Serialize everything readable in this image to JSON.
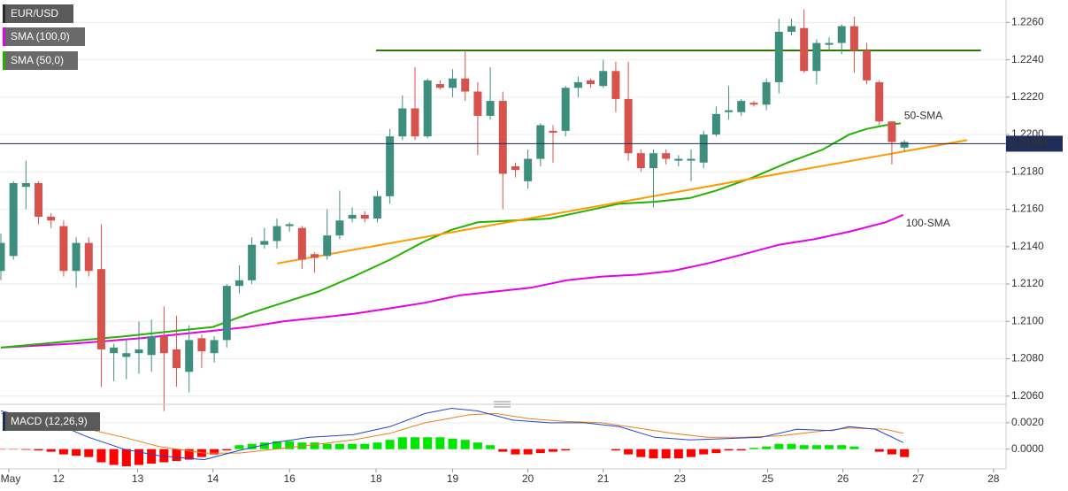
{
  "chart_data": [
    {
      "type": "candlestick",
      "title": "EUR/USD",
      "x": [
        0,
        1,
        2,
        3,
        4,
        5,
        6,
        7,
        8,
        9,
        10,
        11,
        12,
        13,
        14,
        15,
        16,
        17,
        18,
        19,
        20,
        21,
        22,
        23,
        24,
        25,
        26,
        27,
        28,
        29,
        30,
        31,
        32,
        33,
        34,
        35,
        36,
        37,
        38,
        39,
        40,
        41,
        42,
        43,
        44,
        45,
        46,
        47,
        48,
        49,
        50,
        51,
        52,
        53,
        54,
        55,
        56,
        57,
        58,
        59,
        60,
        61,
        62,
        63,
        64,
        65,
        66,
        67,
        68,
        69,
        70,
        71,
        72
      ],
      "open": [
        1.2127,
        1.2135,
        1.2172,
        1.2174,
        1.2156,
        1.2151,
        1.2127,
        1.2142,
        1.2128,
        1.2083,
        1.2081,
        1.2083,
        1.2082,
        1.2092,
        1.2085,
        1.2073,
        1.2091,
        1.2083,
        1.209,
        1.2119,
        1.2122,
        1.2141,
        1.2143,
        1.2151,
        1.215,
        1.2136,
        1.2135,
        1.2146,
        1.2155,
        1.2157,
        1.2155,
        1.2167,
        1.2199,
        1.2214,
        1.2199,
        1.2227,
        1.2225,
        1.223,
        1.2223,
        1.221,
        1.2218,
        1.2183,
        1.2175,
        1.2187,
        1.2202,
        1.2202,
        1.2225,
        1.2229,
        1.2226,
        1.2234,
        1.2219,
        1.219,
        1.2182,
        1.219,
        1.2186,
        1.2186,
        1.2185,
        1.22,
        1.2212,
        1.2212,
        1.2217,
        1.2216,
        1.2228,
        1.2255,
        1.2257,
        1.2234,
        1.2248,
        1.2249,
        1.2258,
        1.2245,
        1.2228,
        1.2207,
        1.2193
      ],
      "high": [
        1.2147,
        1.2175,
        1.2186,
        1.2175,
        1.2158,
        1.2154,
        1.2145,
        1.2145,
        1.2152,
        1.2088,
        1.209,
        1.21,
        1.2101,
        1.2108,
        1.2103,
        1.2098,
        1.2093,
        1.2092,
        1.212,
        1.213,
        1.2145,
        1.215,
        1.2155,
        1.2153,
        1.2151,
        1.2137,
        1.216,
        1.217,
        1.2161,
        1.2159,
        1.217,
        1.2203,
        1.2221,
        1.2236,
        1.223,
        1.2229,
        1.2235,
        1.2245,
        1.2228,
        1.2236,
        1.2223,
        1.2185,
        1.2192,
        1.2206,
        1.2205,
        1.2226,
        1.2231,
        1.223,
        1.224,
        1.2239,
        1.2239,
        1.2192,
        1.2192,
        1.2192,
        1.2189,
        1.2192,
        1.2202,
        1.2215,
        1.2226,
        1.2219,
        1.2218,
        1.223,
        1.2262,
        1.2262,
        1.2267,
        1.2251,
        1.2252,
        1.2259,
        1.2263,
        1.2249,
        1.2229,
        1.2207,
        1.2197
      ],
      "low": [
        1.2122,
        1.2133,
        1.216,
        1.2152,
        1.215,
        1.2124,
        1.2118,
        1.2124,
        1.2065,
        1.2068,
        1.2069,
        1.2072,
        1.2073,
        1.2052,
        1.2065,
        1.2062,
        1.2075,
        1.2078,
        1.2086,
        1.2115,
        1.212,
        1.2139,
        1.2139,
        1.2148,
        1.2128,
        1.2126,
        1.2133,
        1.2144,
        1.2153,
        1.2153,
        1.2153,
        1.2163,
        1.2197,
        1.2197,
        1.2198,
        1.2224,
        1.222,
        1.2218,
        1.2189,
        1.2208,
        1.216,
        1.2177,
        1.2171,
        1.2183,
        1.2185,
        1.2199,
        1.222,
        1.2225,
        1.2225,
        1.2212,
        1.2186,
        1.218,
        1.2161,
        1.2184,
        1.2183,
        1.2175,
        1.2182,
        1.2199,
        1.2208,
        1.221,
        1.2215,
        1.2213,
        1.2222,
        1.2253,
        1.2233,
        1.2227,
        1.2245,
        1.2243,
        1.2233,
        1.2227,
        1.2205,
        1.2184,
        1.2191
      ],
      "close": [
        1.2142,
        1.2174,
        1.2174,
        1.2156,
        1.2154,
        1.2127,
        1.2142,
        1.2127,
        1.2085,
        1.2086,
        1.2083,
        1.2085,
        1.2092,
        1.2083,
        1.2075,
        1.209,
        1.2084,
        1.209,
        1.2119,
        1.2122,
        1.2141,
        1.2143,
        1.2151,
        1.2152,
        1.2133,
        1.2134,
        1.2146,
        1.2154,
        1.2157,
        1.2155,
        1.2167,
        1.2199,
        1.2214,
        1.2199,
        1.2229,
        1.2225,
        1.223,
        1.2223,
        1.221,
        1.2218,
        1.2179,
        1.2181,
        1.2187,
        1.2205,
        1.2201,
        1.2225,
        1.2228,
        1.2227,
        1.2234,
        1.2219,
        1.219,
        1.2182,
        1.219,
        1.2187,
        1.2187,
        1.2187,
        1.22,
        1.2211,
        1.2213,
        1.2218,
        1.2216,
        1.2228,
        1.2255,
        1.2258,
        1.2234,
        1.2249,
        1.2249,
        1.2258,
        1.2245,
        1.2229,
        1.2207,
        1.2196,
        1.2196
      ],
      "up_color": "#3e8e7e",
      "down_color": "#d6534d",
      "xlim": [
        -0.07,
        80.1
      ],
      "xticks": [
        {
          "value": 0.63,
          "label": "May"
        },
        4.6,
        10.9,
        16.9,
        23.0,
        29.9,
        36.0,
        42.0,
        48.0,
        54.1,
        61.1,
        67.1,
        73.1,
        79.1
      ],
      "xtick_labels": [
        "May",
        "12",
        "13",
        "14",
        "16",
        "18",
        "19",
        "20",
        "21",
        "23",
        "25",
        "26",
        "27",
        "28"
      ],
      "ylim": [
        1.2058,
        1.2272
      ],
      "yticks": [
        {
          "value": 1.206,
          "label": "1.2060"
        },
        {
          "value": 1.208,
          "label": "1.2080"
        },
        {
          "value": 1.21,
          "label": "1.2100"
        },
        {
          "value": 1.212,
          "label": "1.2120"
        },
        {
          "value": 1.214,
          "label": "1.2140"
        },
        {
          "value": 1.216,
          "label": "1.2160"
        },
        {
          "value": 1.218,
          "label": "1.2180"
        },
        {
          "value": 1.22,
          "label": "1.2200"
        },
        {
          "value": 1.222,
          "label": "1.2220"
        },
        {
          "value": 1.224,
          "label": "1.2240"
        },
        {
          "value": 1.226,
          "label": "1.2260"
        }
      ],
      "grid": true,
      "last_price": 1.21951,
      "last_price_color": "#1f2d5a",
      "lines": [
        {
          "name": "SMA (100,0)",
          "annotation": "100-SMA",
          "color": "#e600e6",
          "x": [
            0,
            5.6,
            11.2,
            16.9,
            19.7,
            22.5,
            25.3,
            28.1,
            31.0,
            33.8,
            36.6,
            39.4,
            42.2,
            45.1,
            47.9,
            50.7,
            53.5,
            56.3,
            59.2,
            62.0,
            64.8,
            67.6,
            70.5,
            71.9
          ],
          "values": [
            1.2086,
            1.2088,
            1.2091,
            1.2095,
            1.2097,
            1.21,
            1.2102,
            1.2104,
            1.2107,
            1.211,
            1.2114,
            1.2116,
            1.2118,
            1.2122,
            1.2124,
            1.2125,
            1.2127,
            1.2131,
            1.2136,
            1.2141,
            1.2144,
            1.2148,
            1.2153,
            1.2157
          ]
        },
        {
          "name": "SMA (50,0)",
          "annotation": "50-SMA",
          "color": "#22b300",
          "x": [
            0,
            4.9,
            9.8,
            14.0,
            16.9,
            19.7,
            22.5,
            25.3,
            28.1,
            31.0,
            33.8,
            35.9,
            38.0,
            40.8,
            43.7,
            46.5,
            49.3,
            52.1,
            54.9,
            57.0,
            59.9,
            62.7,
            65.5,
            67.6,
            69.0,
            70.5,
            71.7
          ],
          "values": [
            1.2086,
            1.2089,
            1.2092,
            1.2095,
            1.2097,
            1.2104,
            1.211,
            1.2116,
            1.2124,
            1.2133,
            1.2143,
            1.2149,
            1.2153,
            1.2154,
            1.2155,
            1.2159,
            1.2163,
            1.2164,
            1.2166,
            1.217,
            1.2177,
            1.2185,
            1.2192,
            1.22,
            1.2203,
            1.2205,
            1.2206
          ]
        }
      ],
      "trendlines": [
        {
          "color": "#ff9900",
          "x": [
            22.0,
            77.0
          ],
          "values": [
            1.2131,
            1.2197
          ]
        },
        {
          "color": "#2d7a00",
          "x": [
            29.9,
            78.1
          ],
          "values": [
            1.2245,
            1.2245
          ]
        }
      ]
    },
    {
      "type": "macd",
      "title": "MACD (12,26,9)",
      "x": [
        0,
        1,
        2,
        3,
        4,
        5,
        6,
        7,
        8,
        9,
        10,
        11,
        12,
        13,
        14,
        15,
        16,
        17,
        18,
        19,
        20,
        21,
        22,
        23,
        24,
        25,
        26,
        27,
        28,
        29,
        30,
        31,
        32,
        33,
        34,
        35,
        36,
        37,
        38,
        39,
        40,
        41,
        42,
        43,
        44,
        45,
        46,
        47,
        48,
        49,
        50,
        51,
        52,
        53,
        54,
        55,
        56,
        57,
        58,
        59,
        60,
        61,
        62,
        63,
        64,
        65,
        66,
        67,
        68,
        69,
        70,
        71,
        72
      ],
      "histogram": [
        -3e-05,
        -3e-05,
        -5e-05,
        -0.0001,
        -0.0002,
        -0.0004,
        -0.0005,
        -0.0006,
        -0.001,
        -0.0012,
        -0.0013,
        -0.0012,
        -0.0011,
        -0.001,
        -0.0009,
        -0.0008,
        -0.0006,
        -0.0004,
        -0.0001,
        0.0003,
        0.0004,
        0.0005,
        0.0006,
        0.0006,
        0.0005,
        0.0005,
        0.0004,
        0.0004,
        0.0004,
        0.0004,
        0.0005,
        0.0007,
        0.0009,
        0.0009,
        0.0009,
        0.0009,
        0.0008,
        0.0007,
        0.0005,
        0.0003,
        -0.0002,
        -0.0004,
        -0.0004,
        -0.0003,
        -0.0002,
        -0.0001,
        0,
        0,
        0,
        -0.0001,
        -0.0004,
        -0.0006,
        -0.0007,
        -0.0007,
        -0.0007,
        -0.0006,
        -0.0004,
        -0.0003,
        -0.0001,
        -0.0001,
        0.0001,
        0.0002,
        0.0004,
        0.0004,
        0.0003,
        0.0003,
        0.0003,
        0.0003,
        0.0002,
        0,
        -0.0002,
        -0.0004,
        -0.0006
      ],
      "positive_color": "#00e600",
      "negative_color": "#ff0000",
      "macd": {
        "color": "#2244cc",
        "x": [
          0,
          4.2,
          7.0,
          9.8,
          12.6,
          16.2,
          19.0,
          21.8,
          24.6,
          28.1,
          31.0,
          33.8,
          35.9,
          38.0,
          40.8,
          43.7,
          46.5,
          49.3,
          52.1,
          54.9,
          57.8,
          60.6,
          63.4,
          66.2,
          67.6,
          69.7,
          71.9
        ],
        "values": [
          0.0029,
          0.002,
          0.0009,
          0.0,
          -0.0005,
          -0.0008,
          -0.0001,
          0.0005,
          0.0009,
          0.0011,
          0.0017,
          0.0027,
          0.0031,
          0.0029,
          0.0022,
          0.002,
          0.002,
          0.0017,
          0.0009,
          0.0007,
          0.0008,
          0.0009,
          0.0015,
          0.0014,
          0.0017,
          0.0015,
          0.0005
        ]
      },
      "signal": {
        "color": "#f07d1a",
        "x": [
          0,
          4.2,
          7.0,
          9.8,
          12.6,
          16.2,
          19.0,
          21.8,
          24.6,
          28.1,
          31.0,
          33.8,
          37.3,
          39.4,
          42.2,
          45.1,
          47.9,
          50.7,
          53.5,
          56.3,
          59.2,
          62.0,
          64.8,
          67.6,
          70.5,
          71.9
        ],
        "values": [
          0.0027,
          0.0024,
          0.0015,
          0.0009,
          0.0002,
          -0.0003,
          -0.0003,
          0.0,
          0.0003,
          0.0007,
          0.0012,
          0.002,
          0.0026,
          0.0027,
          0.0023,
          0.0021,
          0.002,
          0.0016,
          0.0012,
          0.0009,
          0.0009,
          0.001,
          0.0013,
          0.0016,
          0.0015,
          0.0012
        ]
      },
      "ylim": [
        -0.0015,
        0.0032
      ],
      "yticks": [
        {
          "value": 0,
          "label": "0.0000"
        },
        {
          "value": 0.002,
          "label": "0.0020"
        }
      ],
      "grid": true
    }
  ]
}
